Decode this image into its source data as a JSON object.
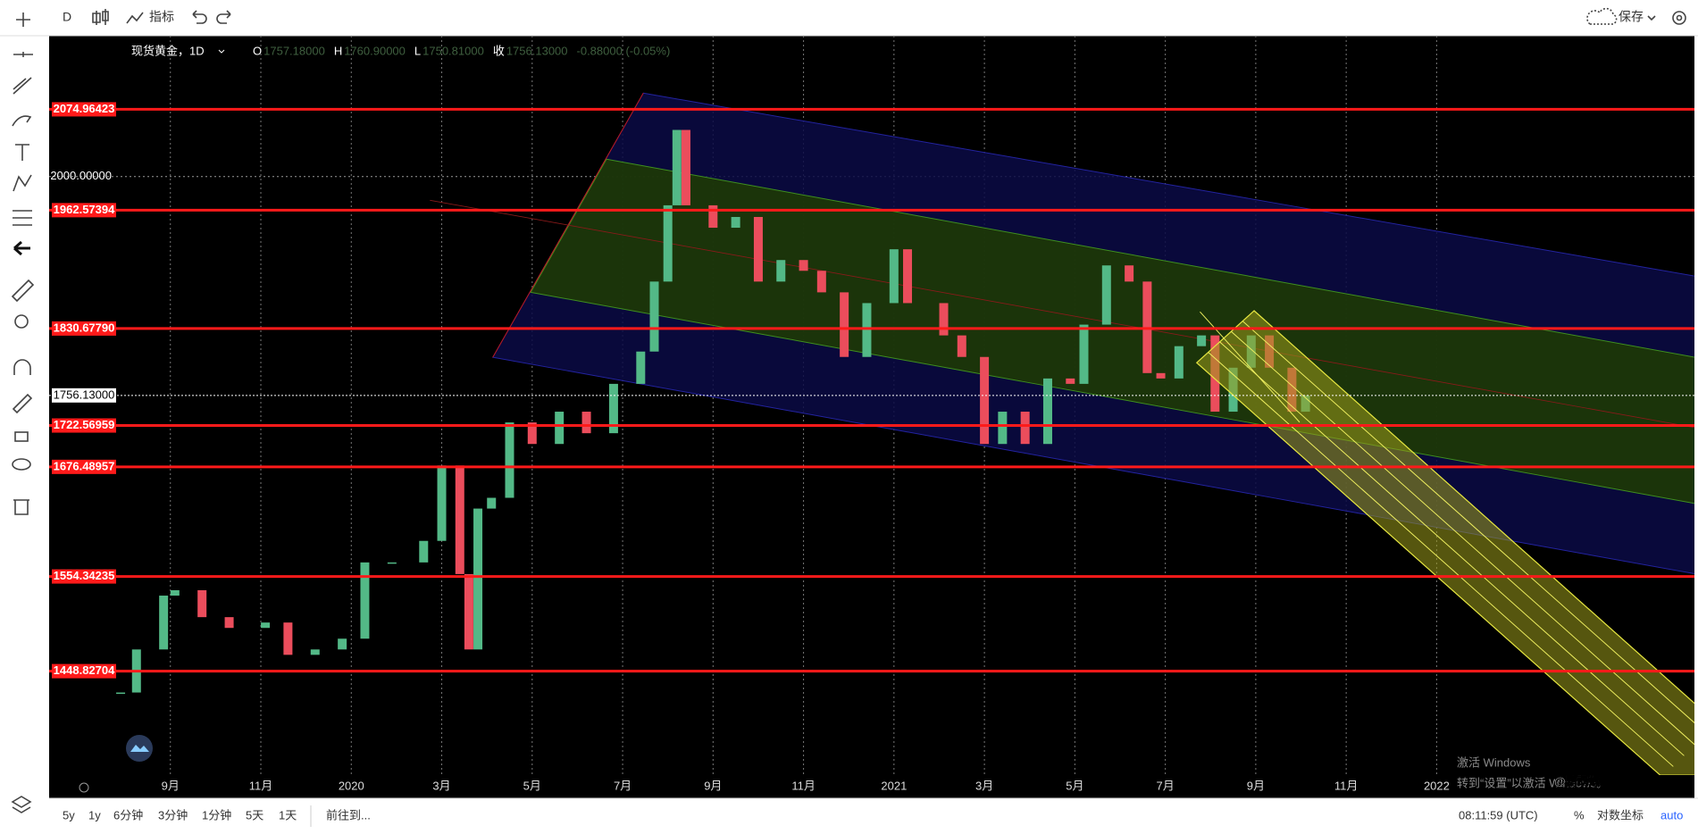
{
  "toolbar": {
    "interval": "D",
    "indicators": "指标",
    "save": "保存"
  },
  "chart_data": {
    "type": "candlestick",
    "title": "现货黄金，1D",
    "legend": [
      {
        "name": "O",
        "label": "1757.18000"
      },
      {
        "name": "H",
        "label": "1760.90000"
      },
      {
        "name": "L",
        "label": "1750.81000"
      },
      {
        "name": "收",
        "label": "1756.13000"
      }
    ],
    "change": "-0.88000 (-0.05%)",
    "x": [
      6.9,
      7.25,
      7.85,
      8.1,
      8.7,
      9.3,
      10.1,
      10.6,
      11.2,
      11.8,
      12.3,
      12.9,
      13.6,
      14.0,
      14.4,
      14.6,
      14.8,
      15.1,
      15.5,
      16.0,
      16.6,
      17.2,
      17.8,
      18.4,
      18.7,
      19.0,
      19.2,
      19.4,
      20.0,
      20.5,
      21.0,
      21.5,
      22.0,
      22.4,
      22.9,
      23.4,
      24.0,
      24.3,
      25.1,
      25.5,
      26.0,
      26.4,
      26.9,
      27.4,
      27.9,
      28.2,
      28.7,
      29.2,
      29.6,
      29.9,
      30.3,
      30.8,
      31.1,
      31.5,
      31.9,
      32.3,
      32.8,
      33.1
    ],
    "values": [
      1425,
      1473,
      1533,
      1539,
      1509,
      1497,
      1503,
      1467,
      1473,
      1485,
      1570,
      1570,
      1594,
      1678,
      1557,
      1473,
      1630,
      1642,
      1726,
      1702,
      1738,
      1714,
      1769,
      1805,
      1883,
      1968,
      2052,
      1968,
      1943,
      1955,
      1883,
      1907,
      1895,
      1871,
      1799,
      1859,
      1919,
      1859,
      1823,
      1799,
      1702,
      1738,
      1702,
      1775,
      1769,
      1835,
      1901,
      1883,
      1781,
      1775,
      1811,
      1823,
      1738,
      1787,
      1823,
      1787,
      1738,
      1756
    ],
    "up_color": "#53b987",
    "down_color": "#eb4d5c",
    "xlim": [
      6.8,
      41.7
    ],
    "xticks": [
      {
        "value": 8,
        "label": "9月"
      },
      {
        "value": 10,
        "label": "11月"
      },
      {
        "value": 12,
        "label": "2020"
      },
      {
        "value": 14,
        "label": "3月"
      },
      {
        "value": 16,
        "label": "5月"
      },
      {
        "value": 18,
        "label": "7月"
      },
      {
        "value": 20,
        "label": "9月"
      },
      {
        "value": 22,
        "label": "11月"
      },
      {
        "value": 24,
        "label": "2021"
      },
      {
        "value": 26,
        "label": "3月"
      },
      {
        "value": 28,
        "label": "5月"
      },
      {
        "value": 30,
        "label": "7月"
      },
      {
        "value": 32,
        "label": "9月"
      },
      {
        "value": 34,
        "label": "11月"
      },
      {
        "value": 36,
        "label": "2022"
      }
    ],
    "ylim": [
      1333,
      2157
    ],
    "yticks": [
      {
        "value": 2000,
        "label": "2000.00000"
      }
    ],
    "levels": [
      {
        "value": 2074.96423,
        "label": "2074.96423"
      },
      {
        "value": 1962.57394,
        "label": "1962.57394"
      },
      {
        "value": 1830.6779,
        "label": "1830.67790"
      },
      {
        "value": 1722.56959,
        "label": "1722.56959"
      },
      {
        "value": 1676.48957,
        "label": "1676.48957"
      },
      {
        "value": 1554.34235,
        "label": "1554.34235"
      },
      {
        "value": 1448.82704,
        "label": "1448.82704"
      }
    ],
    "level_color": "#ff1a1a",
    "last_price": {
      "value": 1756.13,
      "label": "1756.13000"
    },
    "grid": true
  },
  "bottom_bar": {
    "ranges": [
      "5y",
      "1y",
      "6分钟",
      "3分钟",
      "1分钟",
      "5天",
      "1天"
    ],
    "goto": "前往到...",
    "time": "08:11:59 (UTC)",
    "percent": "%",
    "log": "对数坐标",
    "auto": "auto"
  },
  "watermark": {
    "line1": "激活 Windows",
    "line2": "转到“设置”以激活 Windows。",
    "logo": "@鹦鹉螺"
  }
}
